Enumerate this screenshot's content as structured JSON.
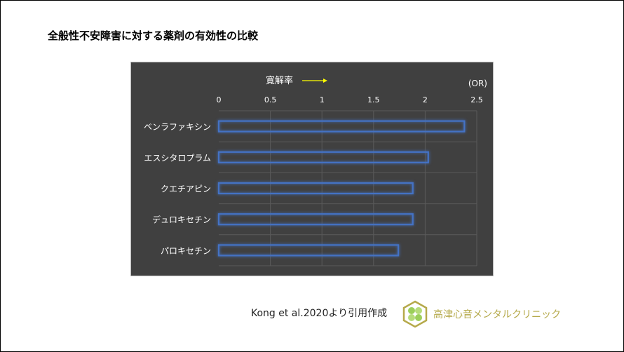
{
  "title": "全般性不安障害に対する薬剤の有効性の比較",
  "chart_data": {
    "type": "bar",
    "orientation": "horizontal",
    "annotation": "寛解率",
    "unit_label": "(OR)",
    "categories": [
      "ベンラファキシン",
      "エスシタロプラム",
      "クエチアピン",
      "デュロキセチン",
      "パロキセチン"
    ],
    "values": [
      2.38,
      2.03,
      1.88,
      1.88,
      1.74
    ],
    "xlim": [
      0,
      2.5
    ],
    "xticks": [
      "0",
      "0.5",
      "1",
      "1.5",
      "2",
      "2.5"
    ],
    "grid": true,
    "colors": {
      "background": "#404040",
      "bar_outline": "#4472c4",
      "arrow": "#ffff00",
      "text": "#ffffff"
    }
  },
  "citation": "Kong et al.2020より引用作成",
  "clinic_name": "高津心音メンタルクリニック"
}
